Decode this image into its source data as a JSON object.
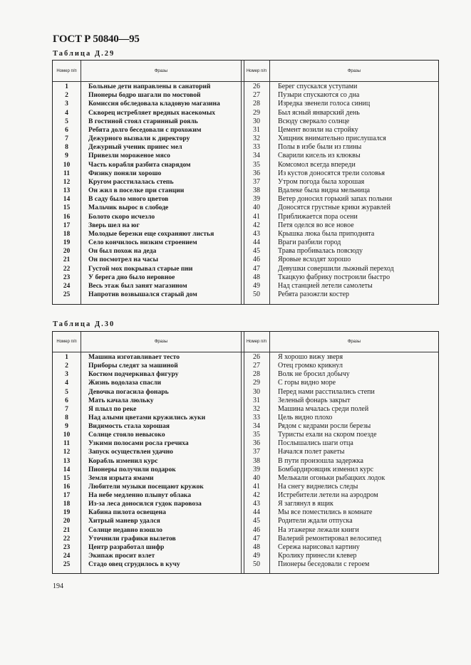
{
  "document": {
    "title": "ГОСТ Р 50840—95",
    "page_number": "194"
  },
  "tables": [
    {
      "title": "Таблица Д.29",
      "headers": {
        "number": "Номер п/п",
        "phrases": "Фразы"
      },
      "rows": [
        [
          "1",
          "Больные дети направлены в санаторий"
        ],
        [
          "2",
          "Пионеры бодро шагали по мостовой"
        ],
        [
          "3",
          "Комиссия обследовала кладовую магазина"
        ],
        [
          "4",
          "Скворец истребляет вредных насекомых"
        ],
        [
          "5",
          "В гостиной стоял старинный рояль"
        ],
        [
          "6",
          "Ребята долго беседовали с прохожим"
        ],
        [
          "7",
          "Дежурного вызвали к директору"
        ],
        [
          "8",
          "Дежурный ученик принес мел"
        ],
        [
          "9",
          "Привезли мороженое мясо"
        ],
        [
          "10",
          "Часть корабля разбита снарядом"
        ],
        [
          "11",
          "Физику поняли хорошо"
        ],
        [
          "12",
          "Кругом расстилалась степь"
        ],
        [
          "13",
          "Он жил в поселке при станции"
        ],
        [
          "14",
          "В саду было много цветов"
        ],
        [
          "15",
          "Мальчик вырос в слободе"
        ],
        [
          "16",
          "Болото скоро исчезло"
        ],
        [
          "17",
          "Зверь шел на юг"
        ],
        [
          "18",
          "Молодые березки еще сохраняют листья"
        ],
        [
          "19",
          "Село кончилось низким строением"
        ],
        [
          "20",
          "Он был похож на деда"
        ],
        [
          "21",
          "Он посмотрел на часы"
        ],
        [
          "22",
          "Густой мох покрывал старые пни"
        ],
        [
          "23",
          "У берега дно было неровное"
        ],
        [
          "24",
          "Весь этаж был занят магазином"
        ],
        [
          "25",
          "Напротив возвышался старый дом"
        ],
        [
          "26",
          "Берег спускался уступами"
        ],
        [
          "27",
          "Пузыри спускаются со дна"
        ],
        [
          "28",
          "Изредка звенели голоса синиц"
        ],
        [
          "29",
          "Был ясный январский день"
        ],
        [
          "30",
          "Всюду сверкало солнце"
        ],
        [
          "31",
          "Цемент возили на стройку"
        ],
        [
          "32",
          "Хищник внимательно прислушался"
        ],
        [
          "33",
          "Полы в избе были из глины"
        ],
        [
          "34",
          "Сварили кисель из клюквы"
        ],
        [
          "35",
          "Комсомол всегда впереди"
        ],
        [
          "36",
          "Из кустов доносятся трели соловья"
        ],
        [
          "37",
          "Утром погода была хорошая"
        ],
        [
          "38",
          "Вдалеке была видна мельница"
        ],
        [
          "39",
          "Ветер доносил горький запах полыни"
        ],
        [
          "40",
          "Доносятся грустные крики журавлей"
        ],
        [
          "41",
          "Приближается пора осени"
        ],
        [
          "42",
          "Петя оделся во все новое"
        ],
        [
          "43",
          "Крышка люка была приподнята"
        ],
        [
          "44",
          "Враги разбили город"
        ],
        [
          "45",
          "Трава пробивалась повсюду"
        ],
        [
          "46",
          "Яровые всходят хорошо"
        ],
        [
          "47",
          "Девушки совершили лыжный переход"
        ],
        [
          "48",
          "Ткацкую фабрику построили быстро"
        ],
        [
          "49",
          "Над станцией летели самолеты"
        ],
        [
          "50",
          "Ребята разожгли костер"
        ]
      ]
    },
    {
      "title": "Таблица Д.30",
      "headers": {
        "number": "Номер п/п",
        "phrases": "Фразы"
      },
      "rows": [
        [
          "1",
          "Машина изготавливает тесто"
        ],
        [
          "2",
          "Приборы следят за машиной"
        ],
        [
          "3",
          "Костюм подчеркивал фигуру"
        ],
        [
          "4",
          "Жизнь водолаза спасли"
        ],
        [
          "5",
          "Девочка погасила фонарь"
        ],
        [
          "6",
          "Мать качала люльку"
        ],
        [
          "7",
          "Я плыл по реке"
        ],
        [
          "8",
          "Над алыми цветами кружились жуки"
        ],
        [
          "9",
          "Видимость стала хорошая"
        ],
        [
          "10",
          "Солнце стояло невысоко"
        ],
        [
          "11",
          "Узкими полосами росла гречиха"
        ],
        [
          "12",
          "Запуск осуществлен удачно"
        ],
        [
          "13",
          "Корабль изменил курс"
        ],
        [
          "14",
          "Пионеры получили подарок"
        ],
        [
          "15",
          "Земля изрыта ямами"
        ],
        [
          "16",
          "Любители музыки посещают кружок"
        ],
        [
          "17",
          "На небе медленно плывут облака"
        ],
        [
          "18",
          "Из-за леса доносился гудок паровоза"
        ],
        [
          "19",
          "Кабина пилота освещена"
        ],
        [
          "20",
          "Хитрый маневр удался"
        ],
        [
          "21",
          "Солнце недавно взошло"
        ],
        [
          "22",
          "Уточнили графики вылетов"
        ],
        [
          "23",
          "Центр разработал шифр"
        ],
        [
          "24",
          "Экипаж просит взлет"
        ],
        [
          "25",
          "Стадо овец сгрудилось в кучу"
        ],
        [
          "26",
          "Я хорошо вижу зверя"
        ],
        [
          "27",
          "Отец громко крикнул"
        ],
        [
          "28",
          "Волк не бросил добычу"
        ],
        [
          "29",
          "С горы видно море"
        ],
        [
          "30",
          "Перед нами расстилались степи"
        ],
        [
          "31",
          "Зеленый фонарь закрыт"
        ],
        [
          "32",
          "Машина мчалась среди полей"
        ],
        [
          "33",
          "Цель видно плохо"
        ],
        [
          "34",
          "Рядом с кедрами росли березы"
        ],
        [
          "35",
          "Туристы ехали на скором поезде"
        ],
        [
          "36",
          "Послышались шаги отца"
        ],
        [
          "37",
          "Начался полет ракеты"
        ],
        [
          "38",
          "В пути произошла задержка"
        ],
        [
          "39",
          "Бомбардировщик изменил курс"
        ],
        [
          "40",
          "Мелькали огоньки рыбацких лодок"
        ],
        [
          "41",
          "На снегу виднелись следы"
        ],
        [
          "42",
          "Истребители летели на аэродром"
        ],
        [
          "43",
          "Я заглянул в ящик"
        ],
        [
          "44",
          "Мы все поместились в комнате"
        ],
        [
          "45",
          "Родители ждали отпуска"
        ],
        [
          "46",
          "На этажерке лежали книги"
        ],
        [
          "47",
          "Валерий ремонтировал велосипед"
        ],
        [
          "48",
          "Сережа нарисовал картину"
        ],
        [
          "49",
          "Кролику принесли клевер"
        ],
        [
          "50",
          "Пионеры беседовали с героем"
        ]
      ]
    }
  ]
}
